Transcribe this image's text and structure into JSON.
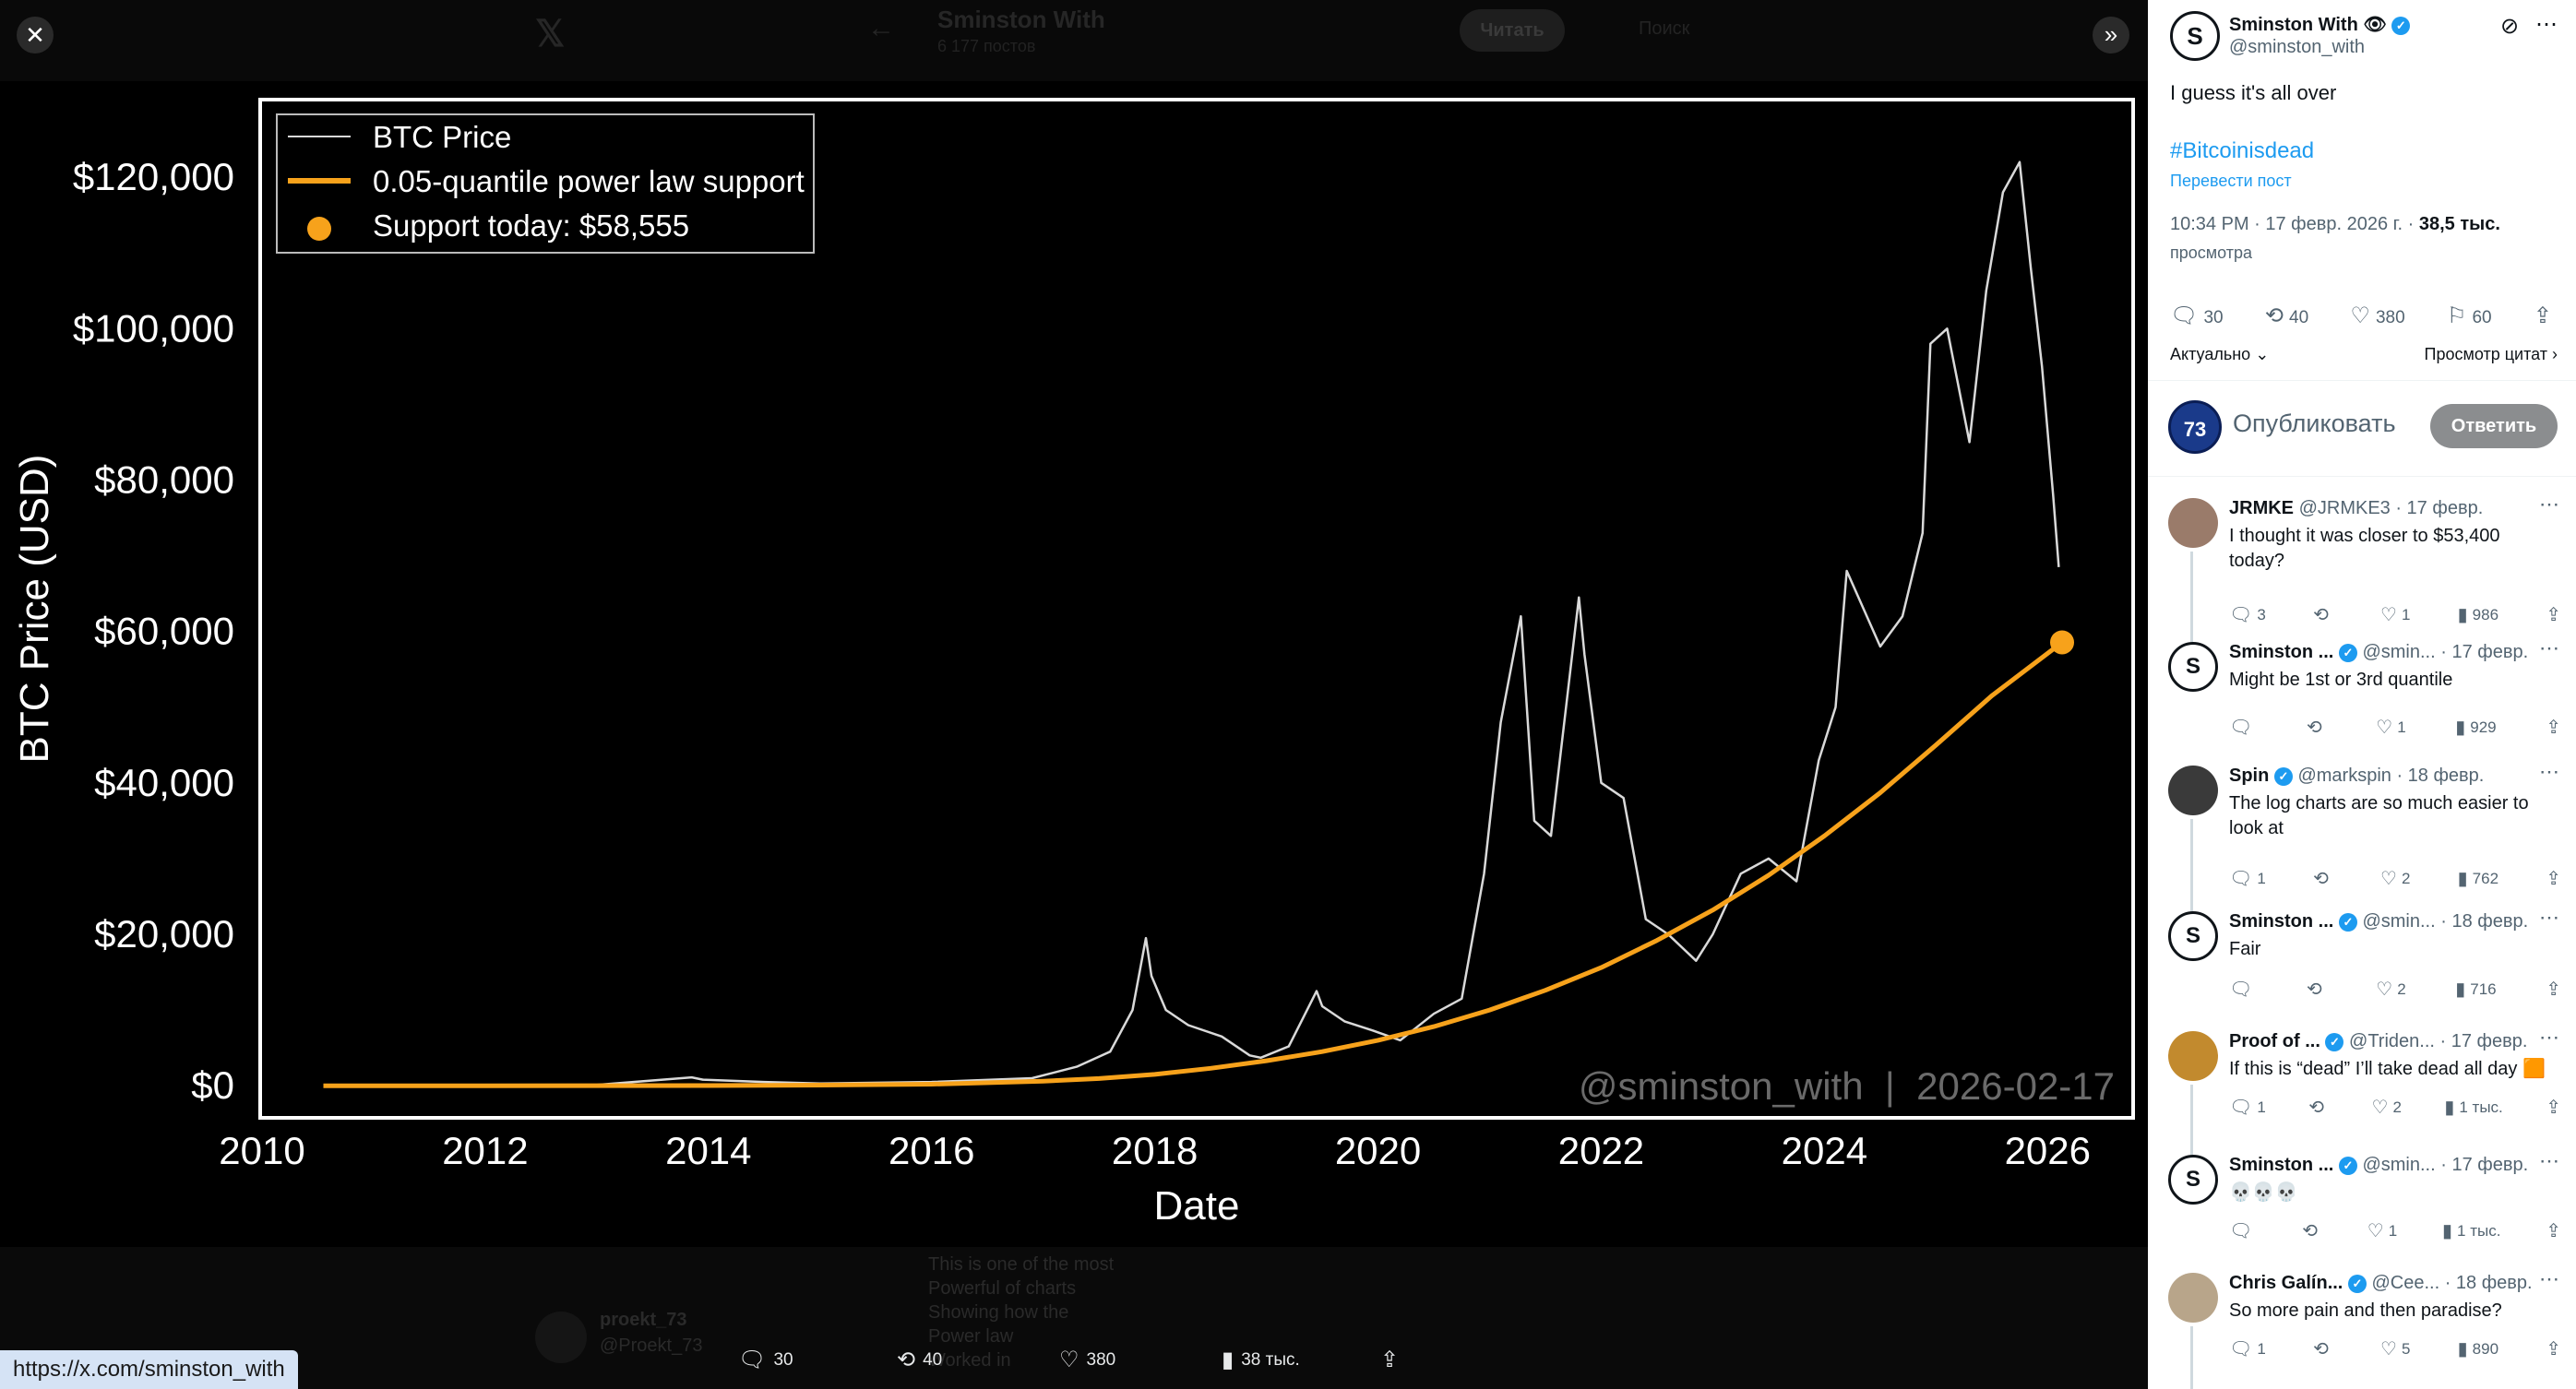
{
  "viewer": {
    "close_label": "✕",
    "collapse_label": "»",
    "bg": {
      "x_logo": "𝕏",
      "back_arrow": "←",
      "profile_name": "Sminston With",
      "profile_sub": "6 177 постов",
      "read_button": "Читать",
      "search_placeholder": "Поиск"
    },
    "bottom": {
      "ghost_user": "proekt_73",
      "ghost_handle": "@Proekt_73",
      "ghost_lines": [
        "This is one of the most",
        "Powerful of charts",
        "Showing how the",
        "Power law",
        "Worked in"
      ],
      "actions": {
        "replies": "30",
        "reposts": "40",
        "likes": "380",
        "views": "38 тыс."
      }
    },
    "url_tooltip": "https://x.com/sminston_with"
  },
  "chart_data": {
    "type": "line",
    "ylabel": "BTC Price (USD)",
    "xlabel": "Date",
    "watermark": "@sminston_with  |  2026-02-17",
    "legend": [
      "BTC Price",
      "0.05-quantile power law support",
      "Support today: $58,555"
    ],
    "legend_position": "top-left",
    "x_ticks": [
      "2010",
      "2012",
      "2014",
      "2016",
      "2018",
      "2020",
      "2022",
      "2024",
      "2026"
    ],
    "y_ticks": [
      "$0",
      "$20,000",
      "$40,000",
      "$60,000",
      "$80,000",
      "$100,000",
      "$120,000"
    ],
    "xlim": [
      2010,
      2026.75
    ],
    "ylim": [
      -4000,
      130000
    ],
    "colors": {
      "price": "#d9d9d9",
      "support": "#f7a21b",
      "background": "#000000",
      "frame": "#ffffff"
    },
    "support_today": {
      "x": 2026.13,
      "y": 58555
    },
    "series": [
      {
        "name": "BTC Price",
        "x": [
          2010.55,
          2013.0,
          2013.85,
          2013.95,
          2014.5,
          2015.0,
          2016.0,
          2016.9,
          2017.3,
          2017.6,
          2017.8,
          2017.92,
          2017.97,
          2018.1,
          2018.3,
          2018.6,
          2018.85,
          2018.95,
          2019.2,
          2019.45,
          2019.5,
          2019.7,
          2019.95,
          2020.2,
          2020.5,
          2020.75,
          2020.95,
          2021.1,
          2021.28,
          2021.4,
          2021.55,
          2021.8,
          2021.85,
          2022.0,
          2022.2,
          2022.4,
          2022.6,
          2022.85,
          2023.0,
          2023.25,
          2023.5,
          2023.75,
          2023.95,
          2024.1,
          2024.2,
          2024.5,
          2024.7,
          2024.88,
          2024.95,
          2025.1,
          2025.3,
          2025.45,
          2025.6,
          2025.75,
          2025.85,
          2025.95,
          2026.05,
          2026.1
        ],
        "y": [
          0,
          100,
          1100,
          800,
          500,
          300,
          500,
          1000,
          2500,
          4500,
          10000,
          19500,
          14500,
          10000,
          8000,
          6500,
          4000,
          3700,
          5200,
          12500,
          10500,
          8500,
          7300,
          6000,
          9500,
          11500,
          28000,
          48000,
          62000,
          35000,
          33000,
          64500,
          57000,
          40000,
          38000,
          22000,
          20000,
          16500,
          20000,
          28000,
          30000,
          27000,
          43000,
          50000,
          68000,
          58000,
          62000,
          73000,
          98000,
          100000,
          85000,
          105000,
          118000,
          122000,
          108000,
          95000,
          78000,
          68500
        ]
      },
      {
        "name": "0.05-quantile power law support",
        "x": [
          2010.55,
          2012,
          2014,
          2015,
          2016,
          2017,
          2017.5,
          2018,
          2018.5,
          2019,
          2019.5,
          2020,
          2020.5,
          2021,
          2021.5,
          2022,
          2022.5,
          2023,
          2023.5,
          2024,
          2024.5,
          2025,
          2025.5,
          2026.13
        ],
        "y": [
          0,
          0,
          20,
          80,
          200,
          600,
          950,
          1500,
          2300,
          3300,
          4500,
          6000,
          7800,
          10000,
          12600,
          15600,
          19200,
          23200,
          27800,
          33000,
          38700,
          45000,
          51500,
          58555
        ]
      }
    ]
  },
  "panel": {
    "post": {
      "author": "Sminston With 👁",
      "handle": "@sminston_with",
      "text": "I guess it's all over",
      "hashtag": "#Bitcoinisdead",
      "translate": "Перевести пост",
      "meta_time": "10:34 PM · 17 февр. 2026 г. · ",
      "meta_views": "38,5 тыс.",
      "views_label": "просмотра",
      "actions": {
        "replies": "30",
        "reposts": "40",
        "likes": "380",
        "bookmarks": "60"
      },
      "sort": "Актуально",
      "quotes": "Просмотр цитат"
    },
    "compose": {
      "avatar_text": "73",
      "placeholder": "Опубликовать",
      "button": "Ответить"
    },
    "replies": [
      {
        "name": "JRMKE",
        "handle": "@JRMKE3 · 17 февр.",
        "text": "I thought it was closer to $53,400 today?",
        "replies": "3",
        "reposts": "",
        "likes": "1",
        "views": "986",
        "avatar_color": "#9a7b6a",
        "verified": false
      },
      {
        "name": "Sminston ...",
        "handle": "@smin... · 17 февр.",
        "text": "Might be 1st or 3rd quantile",
        "replies": "",
        "reposts": "",
        "likes": "1",
        "views": "929",
        "avatar_color": "logo",
        "verified": true
      },
      {
        "name": "Spin",
        "handle": "@markspin · 18 февр.",
        "text": "The log charts are so much easier to look at",
        "replies": "1",
        "reposts": "",
        "likes": "2",
        "views": "762",
        "avatar_color": "#3a3a3a",
        "verified": true
      },
      {
        "name": "Sminston ...",
        "handle": "@smin... · 18 февр.",
        "text": "Fair",
        "replies": "",
        "reposts": "",
        "likes": "2",
        "views": "716",
        "avatar_color": "logo",
        "verified": true
      },
      {
        "name": "Proof of ...",
        "handle": "@Triden... · 17 февр.",
        "text": "If this is “dead” I’ll take dead all day 🟧",
        "replies": "1",
        "reposts": "",
        "likes": "2",
        "views": "1 тыс.",
        "avatar_color": "#c28a2e",
        "verified": true
      },
      {
        "name": "Sminston ...",
        "handle": "@smin... · 17 февр.",
        "text": "💀💀💀",
        "replies": "",
        "reposts": "",
        "likes": "1",
        "views": "1 тыс.",
        "avatar_color": "logo",
        "verified": true
      },
      {
        "name": "Chris Galín...",
        "handle": "@Cee... · 18 февр.",
        "text": "So more pain and then paradise?",
        "replies": "1",
        "reposts": "",
        "likes": "5",
        "views": "890",
        "avatar_color": "#b8a58a",
        "verified": true
      }
    ]
  }
}
